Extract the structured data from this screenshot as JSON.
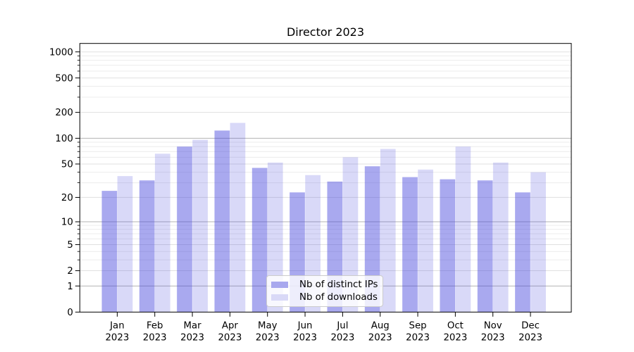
{
  "chart_data": {
    "type": "bar",
    "title": "Director 2023",
    "x": {
      "months": [
        "Jan",
        "Feb",
        "Mar",
        "Apr",
        "May",
        "Jun",
        "Jul",
        "Aug",
        "Sep",
        "Oct",
        "Nov",
        "Dec"
      ],
      "year": "2023"
    },
    "series": [
      {
        "name": "Nb of distinct IPs",
        "key": "distinct-ips",
        "color": "rgba(64,64,220,0.45)",
        "solid_color": "#a8a8ee",
        "values": [
          24,
          32,
          80,
          123,
          45,
          23,
          31,
          47,
          35,
          33,
          32,
          23
        ]
      },
      {
        "name": "Nb of downloads",
        "key": "downloads",
        "color": "rgba(64,64,220,0.20)",
        "solid_color": "#d9d9f7",
        "values": [
          36,
          66,
          96,
          151,
          52,
          37,
          60,
          75,
          43,
          80,
          52,
          40
        ]
      }
    ],
    "y_axis": {
      "scale": "log1p",
      "ticks": [
        0,
        1,
        2,
        5,
        10,
        20,
        50,
        100,
        200,
        500,
        1000
      ],
      "grid_major": [
        1,
        10,
        100
      ],
      "grid_light": [
        2,
        5,
        20,
        50,
        200,
        500,
        1000
      ],
      "grid_faint": [
        3,
        4,
        6,
        7,
        8,
        9,
        30,
        40,
        60,
        70,
        80,
        90,
        300,
        400,
        600,
        700,
        800,
        900
      ],
      "ylim": [
        0,
        1250
      ]
    },
    "grid_colors": {
      "major": "#b3b3b3",
      "light": "#e0e0e0",
      "faint": "#ececec"
    },
    "legend": {
      "position": "lower center"
    }
  }
}
